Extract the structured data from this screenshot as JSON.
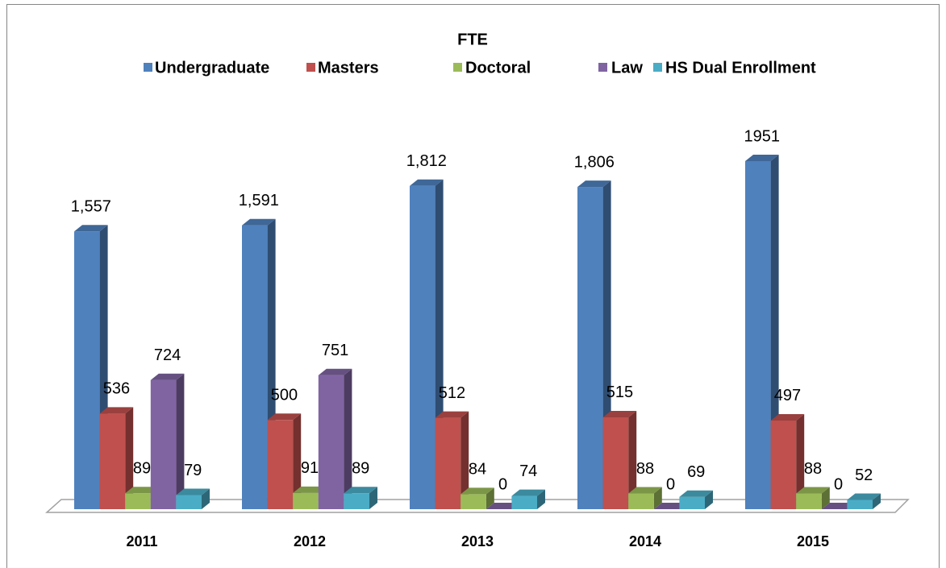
{
  "chart_data": {
    "type": "bar3d",
    "title": "FTE",
    "categories": [
      "2011",
      "2012",
      "2013",
      "2014",
      "2015"
    ],
    "legend": "top",
    "series": [
      {
        "name": "Undergraduate",
        "color": "#4f81bd",
        "values": [
          1557,
          1591,
          1812,
          1806,
          1951
        ],
        "value_labels": [
          "1,557",
          "1,591",
          "1,812",
          "1,806",
          "1951"
        ]
      },
      {
        "name": "Masters",
        "color": "#c0504d",
        "values": [
          536,
          500,
          512,
          515,
          497
        ]
      },
      {
        "name": "Doctoral",
        "color": "#9bbb59",
        "values": [
          89,
          91,
          84,
          88,
          88
        ]
      },
      {
        "name": "Law",
        "color": "#8064a2",
        "values": [
          724,
          751,
          0,
          0,
          0
        ]
      },
      {
        "name": "HS Dual Enrollment",
        "color": "#4bacc6",
        "values": [
          79,
          89,
          74,
          69,
          52
        ]
      }
    ]
  }
}
